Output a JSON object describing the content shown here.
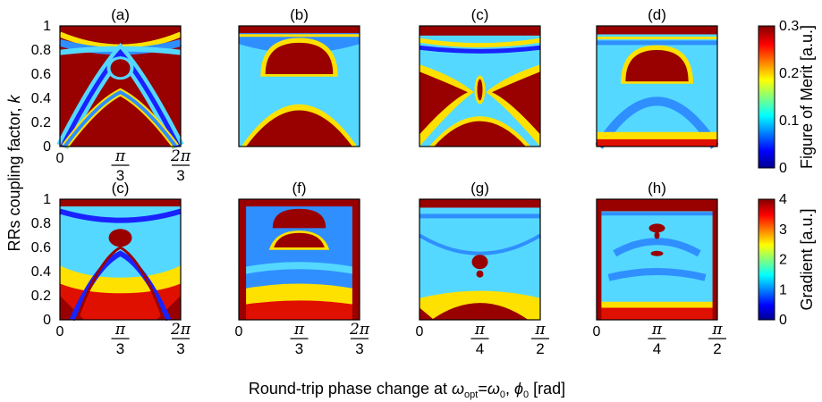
{
  "chart_data": [
    {
      "type": "heatmap",
      "panels": [
        {
          "label": "(a)",
          "x_ticks": [
            "0",
            "π/3",
            "2π/3"
          ]
        },
        {
          "label": "(b)",
          "x_ticks": [
            "",
            "",
            ""
          ]
        },
        {
          "label": "(c)",
          "x_ticks": [
            "",
            "",
            ""
          ]
        },
        {
          "label": "(d)",
          "x_ticks": [
            "",
            "",
            ""
          ]
        }
      ],
      "ylabel": "RRs coupling factor, k",
      "y_ticks": [
        "0",
        "0.2",
        "0.4",
        "0.6",
        "0.8",
        "1"
      ],
      "ylim": [
        0,
        1
      ],
      "colorbar": {
        "label": "Figure of Merit [a.u.]",
        "ticks": [
          "0",
          "0.1",
          "0.2",
          "0.3"
        ],
        "range": [
          0,
          0.3
        ]
      },
      "colormap": "jet"
    },
    {
      "type": "heatmap",
      "panels": [
        {
          "label": "(c)",
          "x_ticks": [
            "0",
            "π/3",
            "2π/3"
          ]
        },
        {
          "label": "(f)",
          "x_ticks": [
            "0",
            "π/3",
            "2π/3"
          ]
        },
        {
          "label": "(g)",
          "x_ticks": [
            "0",
            "π/4",
            "π/2"
          ]
        },
        {
          "label": "(h)",
          "x_ticks": [
            "0",
            "π/4",
            "π/2"
          ]
        }
      ],
      "ylabel": "RRs coupling factor, k",
      "y_ticks": [
        "0",
        "0.2",
        "0.4",
        "0.6",
        "0.8",
        "1"
      ],
      "ylim": [
        0,
        1
      ],
      "colorbar": {
        "label": "Gradient [a.u.]",
        "ticks": [
          "0",
          "1",
          "2",
          "3",
          "4"
        ],
        "range": [
          0,
          4
        ]
      },
      "colormap": "jet"
    }
  ],
  "xlabel": {
    "prefix": "Round-trip phase change at ",
    "omega": "ω",
    "opt_sub": "opt",
    "eq": "=",
    "zero_sub": "0",
    "comma": ", ",
    "phi": "ϕ",
    "suffix": " [rad]"
  },
  "ylabel": "RRs coupling factor, k"
}
